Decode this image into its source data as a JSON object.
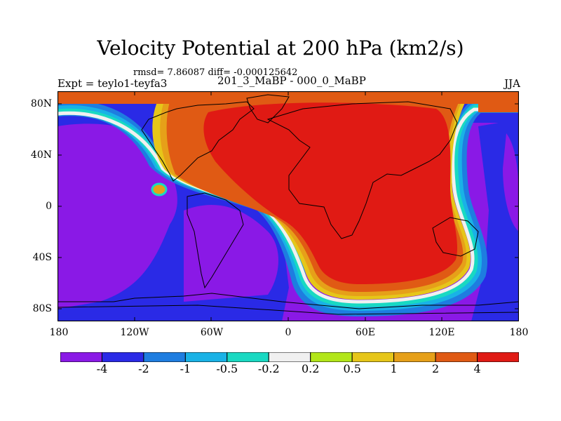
{
  "title": "Velocity Potential at 200 hPa (km2/s)",
  "stats": "rmsd= 7.86087 diff= -0.000125642",
  "expt_label": "Expt = teylo1-teyfa3",
  "expt_name": "201_3_MaBP - 000_0_MaBP",
  "season": "JJA",
  "y_axis": {
    "labels": [
      "80N",
      "40N",
      "0",
      "40S",
      "80S"
    ],
    "lat_values": [
      80,
      40,
      0,
      -40,
      -80
    ],
    "range": [
      -90,
      90
    ]
  },
  "x_axis": {
    "labels": [
      "180",
      "120W",
      "60W",
      "0",
      "60E",
      "120E",
      "180"
    ],
    "lon_values": [
      -180,
      -120,
      -60,
      0,
      60,
      120,
      180
    ],
    "range": [
      -180,
      180
    ]
  },
  "colorbar": {
    "labels": [
      "-4",
      "-2",
      "-1",
      "-0.5",
      "-0.2",
      "0.2",
      "0.5",
      "1",
      "2",
      "4"
    ],
    "colors": [
      "#8a19e6",
      "#2a2ae6",
      "#1e7de0",
      "#19b2e6",
      "#19d9c2",
      "#f0f0f0",
      "#b2e619",
      "#e6c619",
      "#e6a019",
      "#e05a14",
      "#e01a14"
    ]
  },
  "colors": {
    "ocean_deep_neg": "#8a19e6",
    "neg2": "#2a2ae6",
    "neg1": "#1e7de0",
    "neg05": "#19b2e6",
    "neg02": "#19d9c2",
    "zero": "#f0f0f0",
    "pos02": "#b2e619",
    "pos05": "#e6c619",
    "pos1": "#e6a019",
    "pos2": "#e05a14",
    "pos4": "#e01a14"
  }
}
